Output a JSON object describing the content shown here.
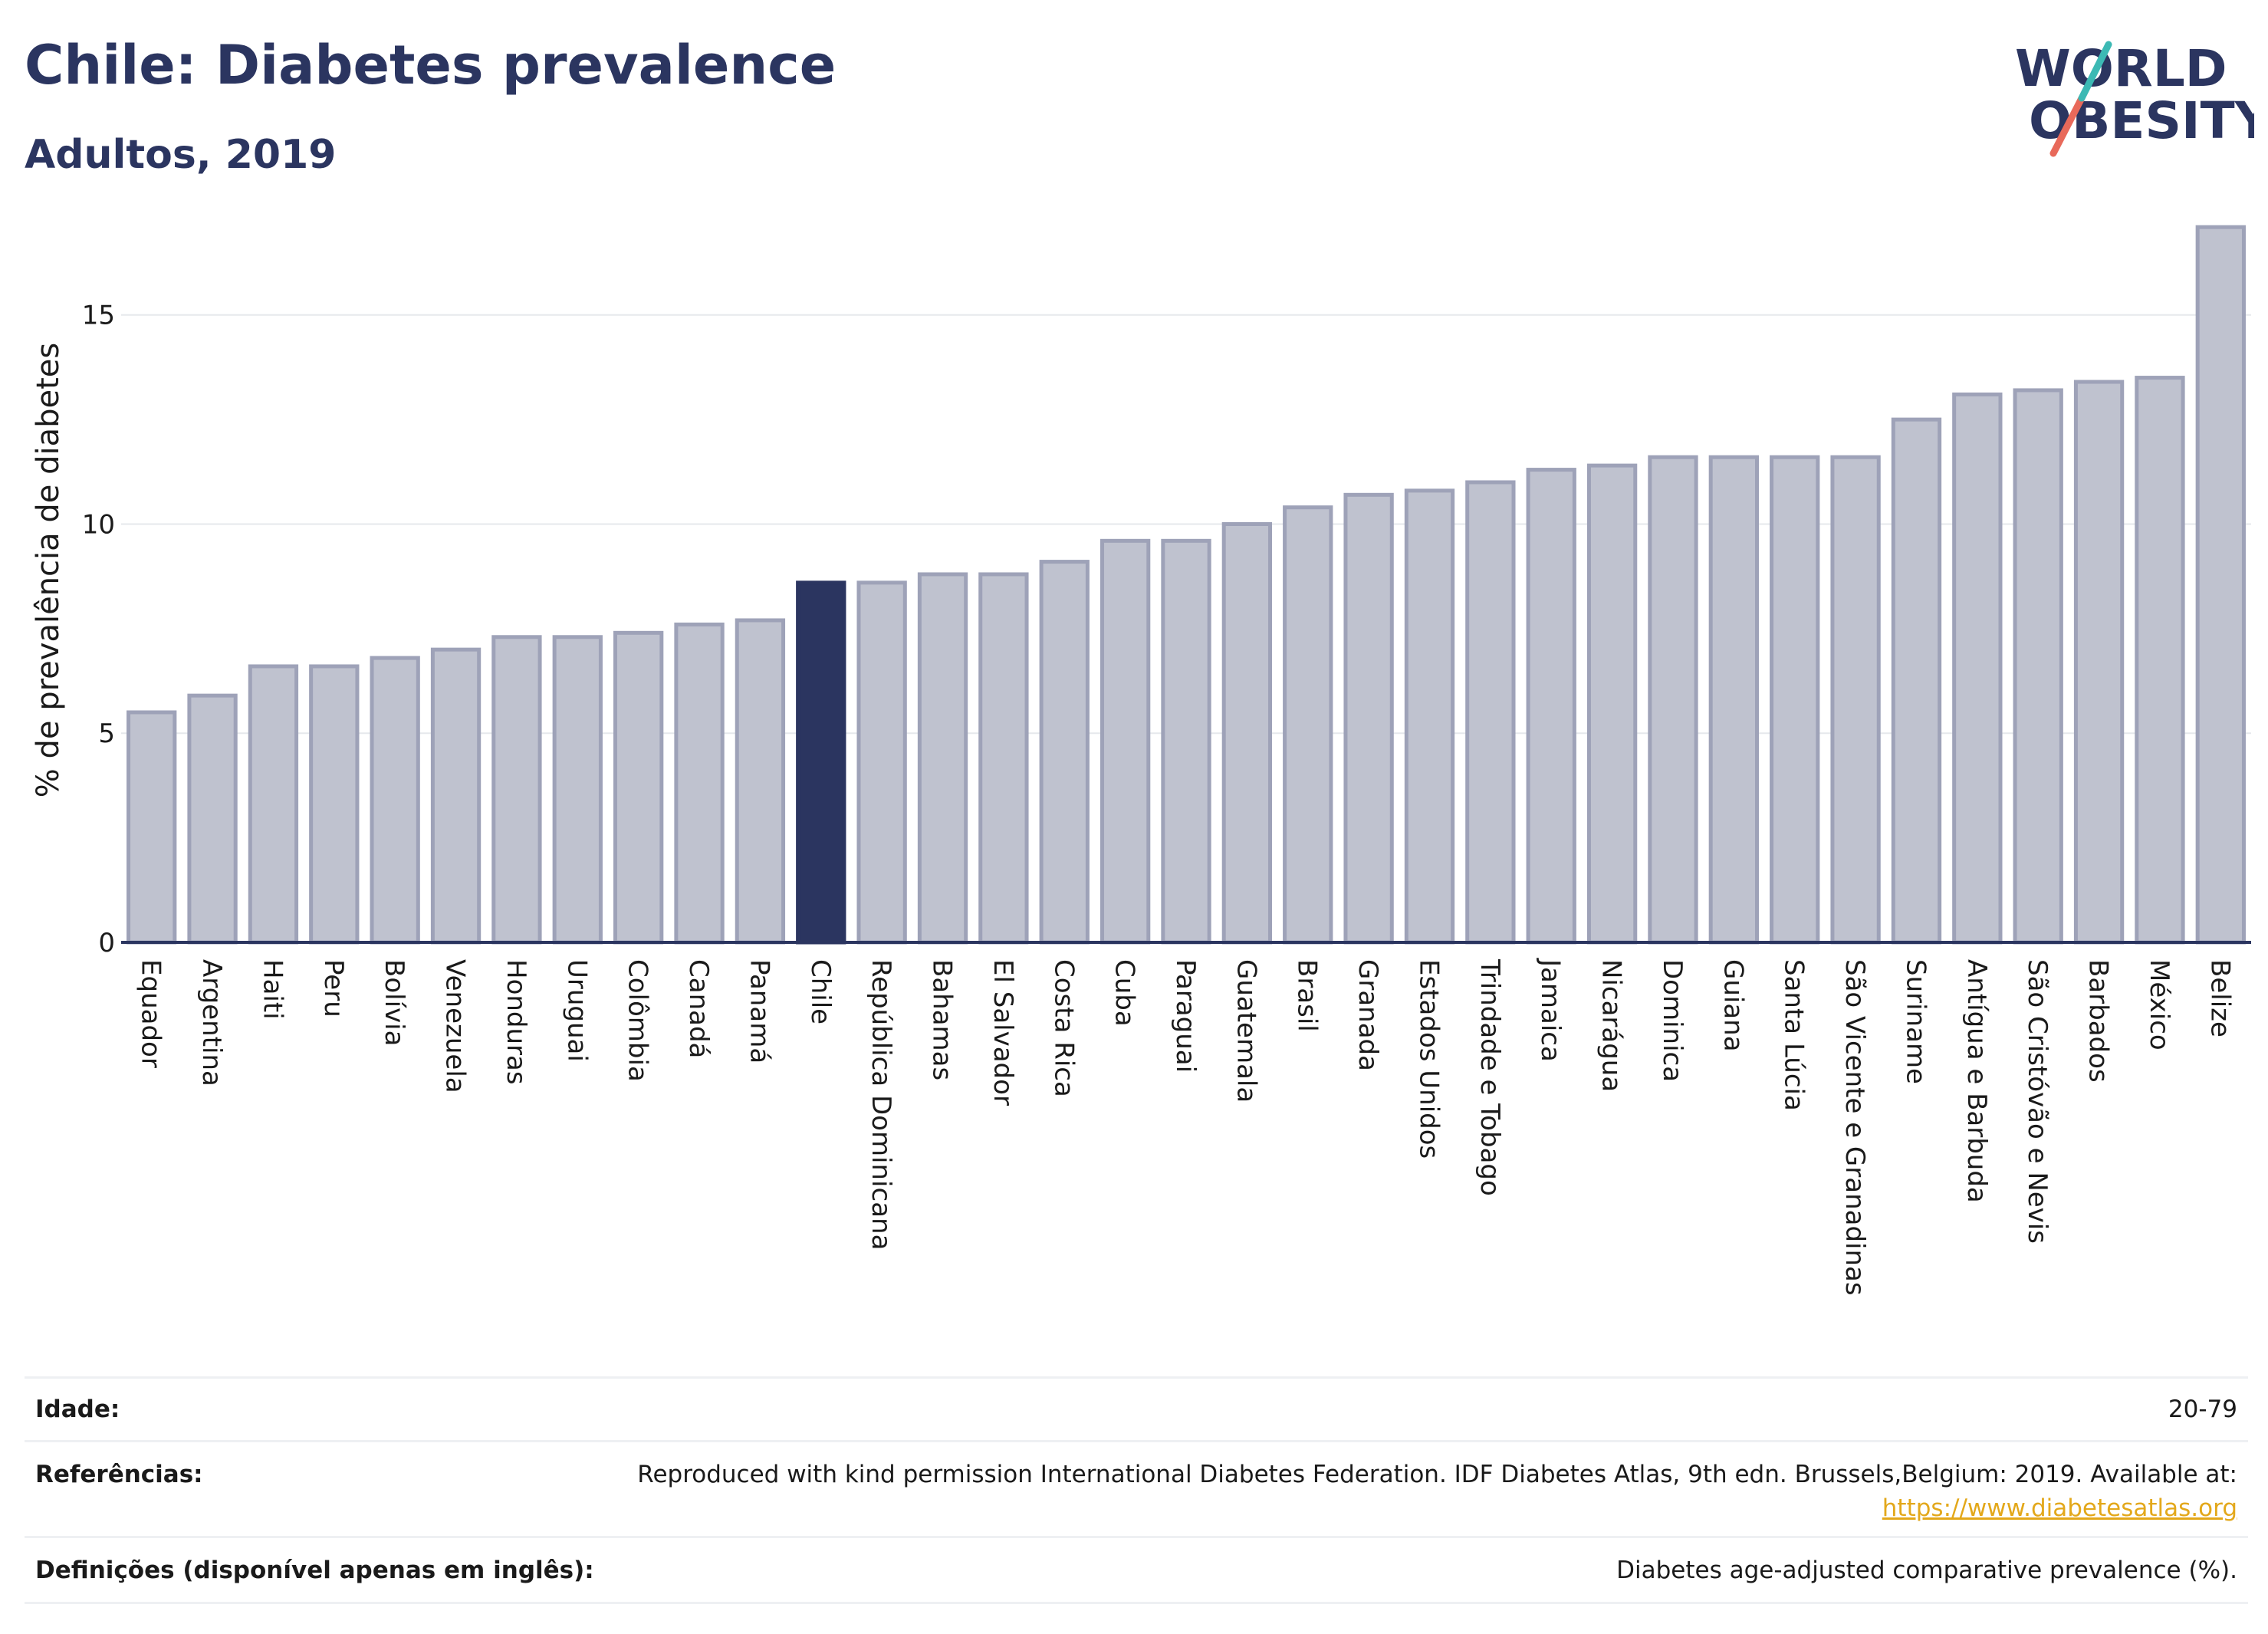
{
  "header": {
    "title": "Chile: Diabetes prevalence",
    "subtitle": "Adultos, 2019",
    "logo_text": [
      "WORLD",
      "OBESITY"
    ]
  },
  "colors": {
    "highlight": "#2b3560",
    "bar_fill": "#bfc2cf",
    "bar_stroke": "#9ea2b8",
    "logo_accent_teal": "#3cb9b4",
    "logo_accent_red": "#e8695a",
    "link": "#e3a81b"
  },
  "chart_data": {
    "type": "bar",
    "ylabel": "% de prevalência de diabetes",
    "ylim": [
      0,
      17.8
    ],
    "yticks": [
      0,
      5,
      10,
      15
    ],
    "grid": true,
    "highlight": "Chile",
    "categories": [
      "Equador",
      "Argentina",
      "Haiti",
      "Peru",
      "Bolívia",
      "Venezuela",
      "Honduras",
      "Uruguai",
      "Colômbia",
      "Canadá",
      "Panamá",
      "Chile",
      "República Dominicana",
      "Bahamas",
      "El Salvador",
      "Costa Rica",
      "Cuba",
      "Paraguai",
      "Guatemala",
      "Brasil",
      "Granada",
      "Estados Unidos",
      "Trindade e Tobago",
      "Jamaica",
      "Nicarágua",
      "Dominica",
      "Guiana",
      "Santa Lúcia",
      "São Vicente e Granadinas",
      "Suriname",
      "Antígua e Barbuda",
      "São Cristóvão e Nevis",
      "Barbados",
      "México",
      "Belize"
    ],
    "values": [
      5.5,
      5.9,
      6.6,
      6.6,
      6.8,
      7.0,
      7.3,
      7.3,
      7.4,
      7.6,
      7.7,
      8.6,
      8.6,
      8.8,
      8.8,
      9.1,
      9.6,
      9.6,
      10.0,
      10.4,
      10.7,
      10.8,
      11.0,
      11.3,
      11.4,
      11.6,
      11.6,
      11.6,
      11.6,
      12.5,
      13.1,
      13.2,
      13.4,
      13.5,
      17.1
    ]
  },
  "meta": {
    "age_label": "Idade:",
    "age_value": "20-79",
    "ref_label": "Referências:",
    "ref_text": "Reproduced with kind permission International Diabetes Federation. IDF Diabetes Atlas, 9th edn. Brussels,Belgium: 2019. Available at:",
    "ref_link": "https://www.diabetesatlas.org",
    "def_label": "Definições (disponível apenas em inglês):",
    "def_value": "Diabetes age-adjusted comparative prevalence (%)."
  }
}
